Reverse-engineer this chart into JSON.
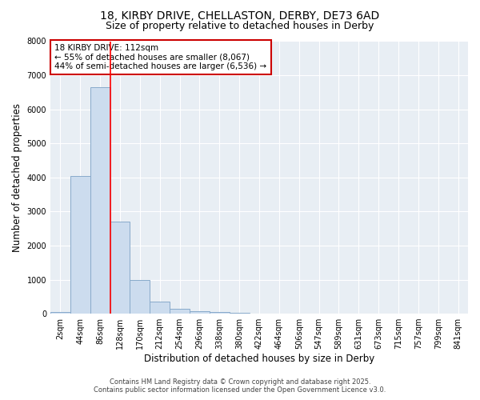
{
  "title1": "18, KIRBY DRIVE, CHELLASTON, DERBY, DE73 6AD",
  "title2": "Size of property relative to detached houses in Derby",
  "xlabel": "Distribution of detached houses by size in Derby",
  "ylabel": "Number of detached properties",
  "bar_color": "#ccdcee",
  "bar_edge_color": "#88aacb",
  "categories": [
    "2sqm",
    "44sqm",
    "86sqm",
    "128sqm",
    "170sqm",
    "212sqm",
    "254sqm",
    "296sqm",
    "338sqm",
    "380sqm",
    "422sqm",
    "464sqm",
    "506sqm",
    "547sqm",
    "589sqm",
    "631sqm",
    "673sqm",
    "715sqm",
    "757sqm",
    "799sqm",
    "841sqm"
  ],
  "values": [
    50,
    4050,
    6650,
    2700,
    1000,
    350,
    150,
    80,
    50,
    20,
    0,
    0,
    0,
    0,
    0,
    0,
    0,
    0,
    0,
    0,
    0
  ],
  "red_line_x": 2.5,
  "annotation_text": "18 KIRBY DRIVE: 112sqm\n← 55% of detached houses are smaller (8,067)\n44% of semi-detached houses are larger (6,536) →",
  "annotation_box_color": "#ffffff",
  "annotation_edge_color": "#cc0000",
  "ylim": [
    0,
    8000
  ],
  "yticks": [
    0,
    1000,
    2000,
    3000,
    4000,
    5000,
    6000,
    7000,
    8000
  ],
  "footnote1": "Contains HM Land Registry data © Crown copyright and database right 2025.",
  "footnote2": "Contains public sector information licensed under the Open Government Licence v3.0.",
  "fig_background": "#ffffff",
  "plot_background": "#e8eef4",
  "grid_color": "#ffffff",
  "title1_fontsize": 10,
  "title2_fontsize": 9,
  "tick_fontsize": 7,
  "label_fontsize": 8.5,
  "annotation_fontsize": 7.5,
  "footnote_fontsize": 6
}
